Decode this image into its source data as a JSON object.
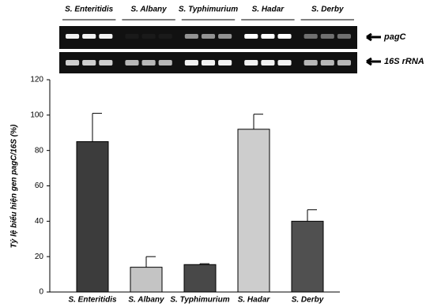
{
  "chart_data": {
    "type": "bar",
    "y_label": "Tỷ lệ biểu hiện gen pagC/16S (%)",
    "categories": [
      "S. Enteritidis",
      "S. Albany",
      "S. Typhimurium",
      "S. Hadar",
      "S. Derby"
    ],
    "values": [
      85,
      14,
      15.5,
      92,
      40
    ],
    "errors": [
      16,
      6,
      0.5,
      8.5,
      6.5
    ],
    "colors": [
      "#3c3c3c",
      "#c4c4c4",
      "#484848",
      "#cdcdcd",
      "#505050"
    ],
    "ylim": [
      0,
      120
    ],
    "yticks": [
      0,
      20,
      40,
      60,
      80,
      100,
      120
    ],
    "gel_labels": [
      "pagC",
      "16S rRNA"
    ]
  }
}
